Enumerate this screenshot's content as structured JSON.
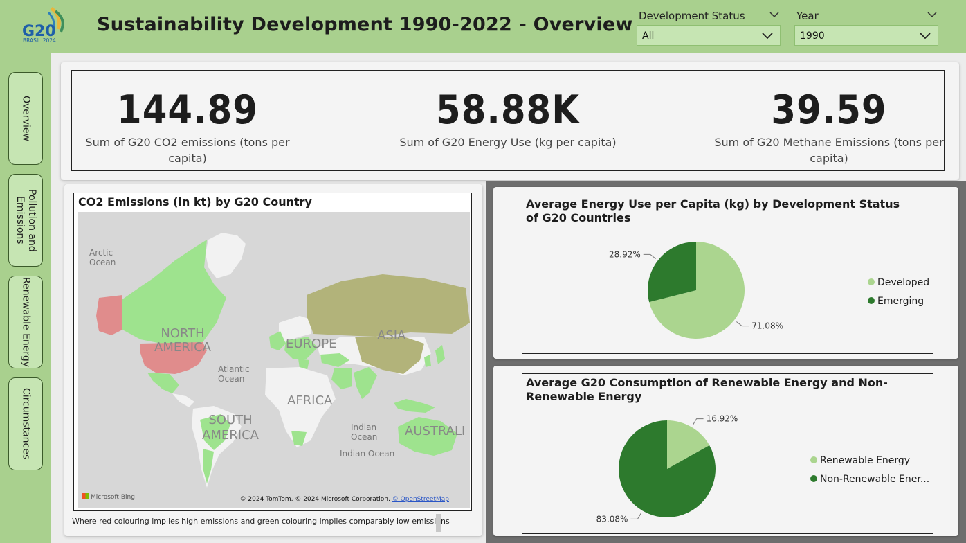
{
  "header": {
    "title": "Sustainability Development 1990-2022 - Overview",
    "logo": {
      "text_main": "G20",
      "text_sub": "BRASIL 2024"
    }
  },
  "filters": {
    "development_status": {
      "label": "Development Status",
      "value": "All"
    },
    "year": {
      "label": "Year",
      "value": "1990"
    }
  },
  "nav": [
    {
      "label": "Overview"
    },
    {
      "label": "Pollution and Emissions"
    },
    {
      "label": "Renewable Energy"
    },
    {
      "label": "Circumstances"
    }
  ],
  "kpis": [
    {
      "value": "144.89",
      "label_line1": "Sum of G20 CO2 emissions (tons per",
      "label_line2": "capita)"
    },
    {
      "value": "58.88K",
      "label_line1": "Sum of G20 Energy Use (kg per capita)",
      "label_line2": ""
    },
    {
      "value": "39.59",
      "label_line1": "Sum of G20 Methane Emissions (tons per",
      "label_line2": "capita)"
    }
  ],
  "map": {
    "title": "CO2 Emissions (in kt) by G20 Country",
    "labels": {
      "arctic": "Arctic Ocean",
      "north_america": "NORTH AMERICA",
      "europe": "EUROPE",
      "asia": "ASIA",
      "atlantic": "Atlantic Ocean",
      "africa": "AFRICA",
      "south_america": "SOUTH AMERICA",
      "indian1": "Indian Ocean",
      "indian2": "Indian Ocean",
      "australia": "AUSTRALI"
    },
    "bing": "Microsoft Bing",
    "attribution": "© 2024 TomTom, © 2024 Microsoft Corporation,",
    "attribution_link": "© OpenStreetMap",
    "note": "Where red colouring implies high emissions and green colouring implies comparably low emissions",
    "colors": {
      "high": "#e08c8c",
      "low": "#9ee38e",
      "mid": "#b2b37a"
    }
  },
  "chart_data": [
    {
      "type": "pie",
      "title": "Average Energy Use per Capita (kg) by Development Status of G20 Countries",
      "categories": [
        "Developed",
        "Emerging"
      ],
      "values": [
        71.08,
        28.92
      ],
      "value_labels": [
        "71.08%",
        "28.92%"
      ],
      "colors": [
        "#abd58f",
        "#2d7a2d"
      ],
      "legend": "right"
    },
    {
      "type": "pie",
      "title": "Average G20 Consumption of Renewable Energy and Non-Renewable Energy",
      "categories": [
        "Renewable Energy",
        "Non-Renewable Ener..."
      ],
      "values": [
        16.92,
        83.08
      ],
      "value_labels": [
        "16.92%",
        "83.08%"
      ],
      "colors": [
        "#abd58f",
        "#2d7a2d"
      ],
      "legend": "right"
    }
  ]
}
